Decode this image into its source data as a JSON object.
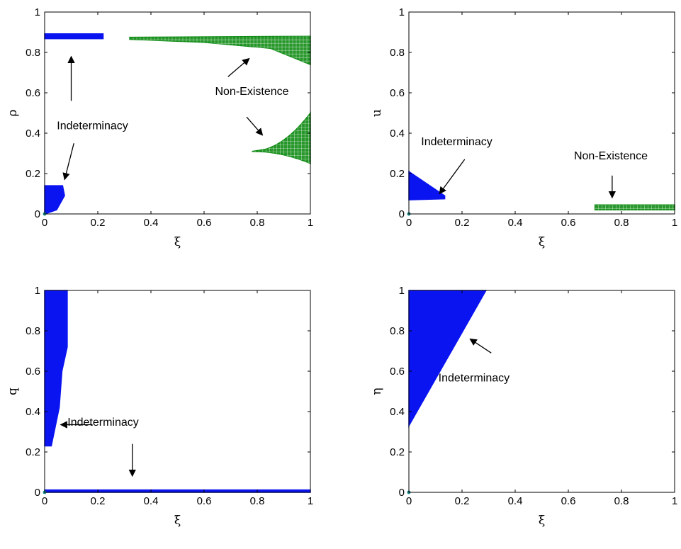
{
  "colors": {
    "indeterminacy": "#0a14f0",
    "non_existence": "#0f8c14"
  },
  "chart_data": [
    {
      "type": "scatter",
      "xlabel": "ξ",
      "ylabel": "ρ",
      "xlim": [
        0,
        1
      ],
      "ylim": [
        0,
        1
      ],
      "xticks": [
        "0",
        "0.2",
        "0.4",
        "0.6",
        "0.8",
        "1"
      ],
      "yticks": [
        "0",
        "0.2",
        "0.4",
        "0.6",
        "0.8",
        "1"
      ],
      "series": [
        {
          "kind": "indeterminacy",
          "region": "band",
          "x_from": 0,
          "x_to": 0.22,
          "y_center": 0.88,
          "half_height": 0.012
        },
        {
          "kind": "indeterminacy",
          "region": "blob",
          "x_from": 0,
          "x_to": 0.075,
          "y_low": 0.0,
          "y_high": 0.14
        },
        {
          "kind": "non_existence",
          "region": "wedge_top",
          "x_from": 0.32,
          "x_to": 1.0,
          "y_top": 0.88,
          "y_bottom_at_right": 0.74
        },
        {
          "kind": "non_existence",
          "region": "lobe",
          "x_from": 0.78,
          "x_to": 1.0,
          "y_center": 0.31,
          "y_low": 0.25,
          "y_high": 0.5
        }
      ],
      "annotations": [
        {
          "text": "Indeterminacy",
          "x": 0.18,
          "y": 0.42
        },
        {
          "text": "Non-Existence",
          "x": 0.78,
          "y": 0.59
        }
      ],
      "arrows": [
        {
          "from": [
            0.1,
            0.56
          ],
          "to": [
            0.1,
            0.78
          ]
        },
        {
          "from": [
            0.11,
            0.35
          ],
          "to": [
            0.075,
            0.17
          ]
        },
        {
          "from": [
            0.69,
            0.68
          ],
          "to": [
            0.77,
            0.77
          ]
        },
        {
          "from": [
            0.76,
            0.48
          ],
          "to": [
            0.82,
            0.39
          ]
        }
      ]
    },
    {
      "type": "scatter",
      "xlabel": "ξ",
      "ylabel": "u",
      "xlim": [
        0,
        1
      ],
      "ylim": [
        0,
        1
      ],
      "xticks": [
        "0",
        "0.2",
        "0.4",
        "0.6",
        "0.8",
        "1"
      ],
      "yticks": [
        "0",
        "0.2",
        "0.4",
        "0.6",
        "0.8",
        "1"
      ],
      "series": [
        {
          "kind": "indeterminacy",
          "region": "wedge_left",
          "x_from": 0,
          "x_to": 0.135,
          "y_low": 0.07,
          "y_high_at_left": 0.21,
          "y_high_at_right": 0.09
        },
        {
          "kind": "non_existence",
          "region": "strip",
          "x_from": 0.7,
          "x_to": 1.0,
          "y_low": 0.02,
          "y_high": 0.045
        }
      ],
      "annotations": [
        {
          "text": "Indeterminacy",
          "x": 0.18,
          "y": 0.34
        },
        {
          "text": "Non-Existence",
          "x": 0.76,
          "y": 0.27
        }
      ],
      "arrows": [
        {
          "from": [
            0.21,
            0.27
          ],
          "to": [
            0.115,
            0.1
          ]
        },
        {
          "from": [
            0.765,
            0.19
          ],
          "to": [
            0.765,
            0.08
          ]
        }
      ]
    },
    {
      "type": "scatter",
      "xlabel": "ξ",
      "ylabel": "q",
      "xlim": [
        0,
        1
      ],
      "ylim": [
        0,
        1
      ],
      "xticks": [
        "0",
        "0.2",
        "0.4",
        "0.6",
        "0.8",
        "1"
      ],
      "yticks": [
        "0",
        "0.2",
        "0.4",
        "0.6",
        "0.8",
        "1"
      ],
      "series": [
        {
          "kind": "indeterminacy",
          "region": "column",
          "x_from": 0,
          "x_to_at_top": 0.085,
          "x_to_at_bottom": 0.025,
          "y_low": 0.23,
          "y_high": 1.0
        },
        {
          "kind": "indeterminacy",
          "region": "baseline",
          "x_from": 0,
          "x_to": 1.0,
          "y_low": 0.0,
          "y_high": 0.012
        }
      ],
      "annotations": [
        {
          "text": "Indeterminacy",
          "x": 0.22,
          "y": 0.33
        }
      ],
      "arrows": [
        {
          "from": [
            0.18,
            0.335
          ],
          "to": [
            0.06,
            0.335
          ]
        },
        {
          "from": [
            0.33,
            0.24
          ],
          "to": [
            0.33,
            0.08
          ]
        }
      ]
    },
    {
      "type": "scatter",
      "xlabel": "ξ",
      "ylabel": "η",
      "xlim": [
        0,
        1
      ],
      "ylim": [
        0,
        1
      ],
      "xticks": [
        "0",
        "0.2",
        "0.4",
        "0.6",
        "0.8",
        "1"
      ],
      "yticks": [
        "0",
        "0.2",
        "0.4",
        "0.6",
        "0.8",
        "1"
      ],
      "series": [
        {
          "kind": "indeterminacy",
          "region": "triangle",
          "x_from": 0,
          "x_to_at_top": 0.29,
          "y_low": 0.33,
          "y_high": 1.0
        }
      ],
      "annotations": [
        {
          "text": "Indeterminacy",
          "x": 0.245,
          "y": 0.55
        }
      ],
      "arrows": [
        {
          "from": [
            0.31,
            0.69
          ],
          "to": [
            0.23,
            0.76
          ]
        }
      ]
    }
  ]
}
